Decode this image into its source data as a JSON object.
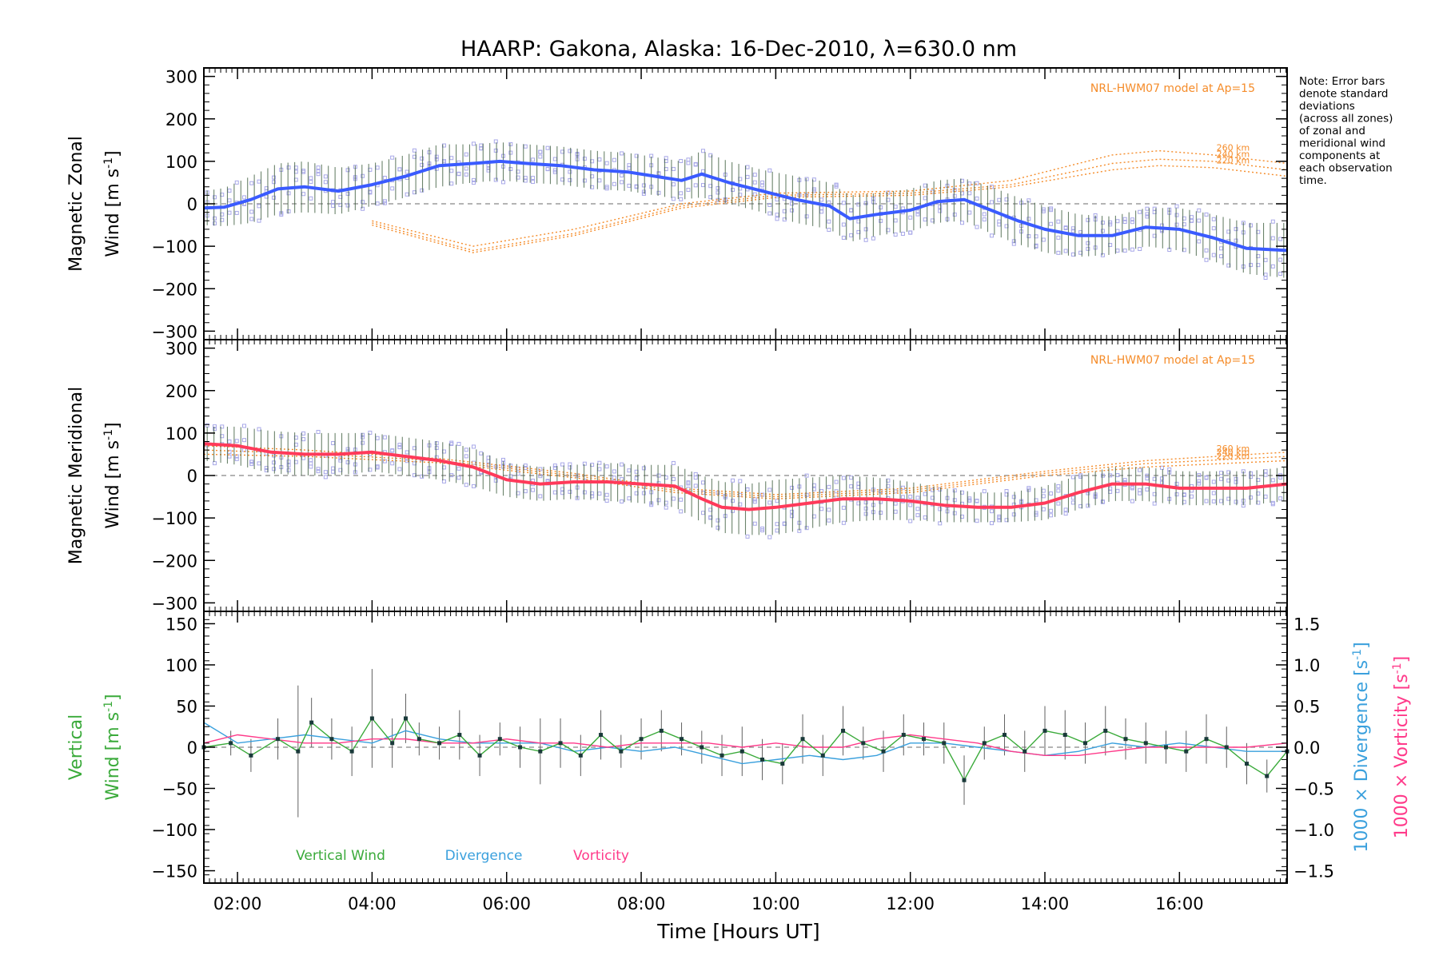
{
  "chart_data": {
    "title": "HAARP: Gakona,  Alaska: 16-Dec-2010, λ=630.0 nm",
    "xlabel": "Time [Hours UT]",
    "x_ticks": [
      "02:00",
      "04:00",
      "06:00",
      "08:00",
      "10:00",
      "12:00",
      "14:00",
      "16:00"
    ],
    "x_tick_hours": [
      2,
      4,
      6,
      8,
      10,
      12,
      14,
      16
    ],
    "xlim_hours": [
      1.5,
      17.6
    ],
    "note": [
      "Note: Error bars",
      "denote standard",
      "deviations",
      "(across all zones)",
      "of zonal and",
      "meridional wind",
      "components at",
      "each observation",
      "time."
    ],
    "colors": {
      "zonal_mean": "#3a5bff",
      "meridional_mean": "#ff3a5a",
      "model": "#f58c2a",
      "scatter": "#a8a8e8",
      "vertical": "#3aaa3a",
      "divergence": "#3aa0dd",
      "vorticity": "#ff3a8a",
      "errorbar": "#606060"
    },
    "panels": [
      {
        "id": "zonal",
        "type": "line",
        "ylabel_line1": "Magnetic Zonal",
        "ylabel_line2a": "Wind [m s",
        "ylabel_sup": "-1",
        "ylabel_line2b": "]",
        "ylim": [
          -320,
          320
        ],
        "yticks": [
          "300",
          "200",
          "100",
          "0",
          "−100",
          "−200",
          "−300"
        ],
        "ytick_values": [
          300,
          200,
          100,
          0,
          -100,
          -200,
          -300
        ],
        "model_label": "NRL-HWM07 model at Ap=15",
        "model_series": [
          {
            "name": "260 km",
            "x": [
              4.0,
              5.5,
              7.0,
              8.6,
              10,
              12,
              13.5,
              15,
              15.7,
              16.5,
              17.6
            ],
            "y": [
              -40,
              -100,
              -60,
              0,
              25,
              30,
              55,
              115,
              125,
              115,
              95
            ]
          },
          {
            "name": "240 km",
            "x": [
              4.0,
              5.5,
              7.0,
              8.6,
              10,
              12,
              13.5,
              15,
              15.7,
              16.5,
              17.6
            ],
            "y": [
              -45,
              -110,
              -70,
              -5,
              20,
              25,
              45,
              95,
              105,
              100,
              80
            ]
          },
          {
            "name": "220 km",
            "x": [
              4.0,
              5.5,
              7.0,
              8.6,
              10,
              12,
              13.5,
              15,
              15.7,
              16.5,
              17.6
            ],
            "y": [
              -50,
              -115,
              -75,
              -10,
              15,
              20,
              40,
              80,
              90,
              85,
              65
            ]
          }
        ],
        "series": [
          {
            "x": [
              1.5,
              1.8,
              2.2,
              2.6,
              3.0,
              3.5,
              4.0,
              4.5,
              5.0,
              5.5,
              5.9,
              6.3,
              6.8,
              7.3,
              7.8,
              8.2,
              8.6,
              8.9,
              9.3,
              9.8,
              10.3,
              10.8,
              11.1,
              11.5,
              12.0,
              12.4,
              12.8,
              13.2,
              13.6,
              14.0,
              14.5,
              15.0,
              15.5,
              16.0,
              16.5,
              17.0,
              17.6
            ],
            "y": [
              -10,
              -8,
              10,
              35,
              40,
              30,
              45,
              65,
              90,
              95,
              100,
              95,
              90,
              80,
              75,
              65,
              55,
              70,
              50,
              30,
              10,
              -5,
              -35,
              -25,
              -15,
              5,
              10,
              -15,
              -40,
              -60,
              -75,
              -75,
              -55,
              -60,
              -80,
              -105,
              -110
            ],
            "err": [
              40,
              45,
              55,
              60,
              60,
              55,
              50,
              50,
              50,
              45,
              45,
              45,
              45,
              45,
              45,
              45,
              45,
              55,
              50,
              50,
              55,
              55,
              55,
              50,
              50,
              50,
              50,
              55,
              55,
              55,
              50,
              45,
              45,
              50,
              55,
              60,
              65
            ]
          }
        ]
      },
      {
        "id": "meridional",
        "type": "line",
        "ylabel_line1": "Magnetic Meridional",
        "ylabel_line2a": "Wind [m s",
        "ylabel_sup": "-1",
        "ylabel_line2b": "]",
        "ylim": [
          -320,
          320
        ],
        "yticks": [
          "300",
          "200",
          "100",
          "0",
          "−100",
          "−200",
          "−300"
        ],
        "ytick_values": [
          300,
          200,
          100,
          0,
          -100,
          -200,
          -300
        ],
        "model_label": "NRL-HWM07 model at Ap=15",
        "model_series": [
          {
            "name": "260 km",
            "x": [
              1.5,
              3.0,
              5.0,
              7.0,
              8.5,
              10.0,
              12.0,
              14.0,
              15.5,
              17.6
            ],
            "y": [
              70,
              60,
              40,
              5,
              -30,
              -45,
              -30,
              10,
              35,
              55
            ]
          },
          {
            "name": "240 km",
            "x": [
              1.5,
              3.0,
              5.0,
              7.0,
              8.5,
              10.0,
              12.0,
              14.0,
              15.5,
              17.6
            ],
            "y": [
              60,
              52,
              35,
              0,
              -35,
              -50,
              -35,
              5,
              28,
              45
            ]
          },
          {
            "name": "220 km",
            "x": [
              1.5,
              3.0,
              5.0,
              7.0,
              8.5,
              10.0,
              12.0,
              14.0,
              15.5,
              17.6
            ],
            "y": [
              50,
              45,
              30,
              -5,
              -40,
              -55,
              -40,
              0,
              20,
              35
            ]
          }
        ],
        "series": [
          {
            "x": [
              1.5,
              2.0,
              2.5,
              3.0,
              3.5,
              4.0,
              4.5,
              5.0,
              5.5,
              6.0,
              6.5,
              7.0,
              7.5,
              8.0,
              8.5,
              8.9,
              9.2,
              9.6,
              10.0,
              10.5,
              11.0,
              11.5,
              12.0,
              12.5,
              13.0,
              13.5,
              14.0,
              14.5,
              15.0,
              15.5,
              16.0,
              16.5,
              17.0,
              17.6
            ],
            "y": [
              75,
              70,
              55,
              50,
              50,
              55,
              45,
              35,
              20,
              -10,
              -20,
              -15,
              -15,
              -20,
              -25,
              -55,
              -75,
              -80,
              -75,
              -65,
              -55,
              -55,
              -60,
              -70,
              -75,
              -75,
              -65,
              -40,
              -20,
              -20,
              -30,
              -30,
              -30,
              -20
            ],
            "err": [
              40,
              45,
              50,
              50,
              50,
              45,
              45,
              45,
              45,
              40,
              40,
              40,
              45,
              45,
              50,
              55,
              60,
              60,
              65,
              60,
              55,
              50,
              45,
              40,
              35,
              35,
              40,
              40,
              40,
              40,
              40,
              40,
              40,
              40
            ]
          }
        ]
      },
      {
        "id": "vertical",
        "type": "line",
        "ylabel_line1": "Vertical",
        "ylabel_line2a": "Wind [m s",
        "ylabel_sup": "-1",
        "ylabel_line2b": "]",
        "ylim": [
          -165,
          165
        ],
        "yticks": [
          "150",
          "100",
          "50",
          "0",
          "−50",
          "−100",
          "−150"
        ],
        "ytick_values": [
          150,
          100,
          50,
          0,
          -50,
          -100,
          -150
        ],
        "right_axis_ticks": [
          "1.5",
          "1.0",
          "0.5",
          "0.0",
          "−0.5",
          "−1.0",
          "−1.5"
        ],
        "right_axis_values": [
          1.5,
          1.0,
          0.5,
          0.0,
          -0.5,
          -1.0,
          -1.5
        ],
        "right_axis_range": [
          -1.65,
          1.65
        ],
        "right_label_div_a": "1000 × Divergence [s",
        "right_label_vor_a": "1000 × Vorticity [s",
        "right_label_sup": "-1",
        "right_label_b": "]",
        "legend": [
          "Vertical Wind",
          "Divergence",
          "Vorticity"
        ],
        "series": [
          {
            "name": "Vertical Wind",
            "x": [
              1.5,
              1.9,
              2.2,
              2.6,
              2.9,
              3.1,
              3.4,
              3.7,
              4.0,
              4.3,
              4.5,
              4.7,
              5.0,
              5.3,
              5.6,
              5.9,
              6.2,
              6.5,
              6.8,
              7.1,
              7.4,
              7.7,
              8.0,
              8.3,
              8.6,
              8.9,
              9.2,
              9.5,
              9.8,
              10.1,
              10.4,
              10.7,
              11.0,
              11.3,
              11.6,
              11.9,
              12.2,
              12.5,
              12.8,
              13.1,
              13.4,
              13.7,
              14.0,
              14.3,
              14.6,
              14.9,
              15.2,
              15.5,
              15.8,
              16.1,
              16.4,
              16.7,
              17.0,
              17.3,
              17.6
            ],
            "y": [
              0,
              5,
              -10,
              10,
              -5,
              30,
              10,
              -5,
              35,
              5,
              35,
              10,
              5,
              15,
              -10,
              10,
              0,
              -5,
              5,
              -10,
              15,
              -5,
              10,
              20,
              10,
              0,
              -10,
              -5,
              -15,
              -20,
              10,
              -10,
              20,
              5,
              -5,
              15,
              10,
              5,
              -40,
              5,
              15,
              -5,
              20,
              15,
              5,
              20,
              10,
              5,
              0,
              -5,
              10,
              0,
              -20,
              -35,
              -5
            ],
            "err": [
              10,
              15,
              20,
              25,
              80,
              30,
              25,
              30,
              60,
              30,
              30,
              20,
              20,
              30,
              25,
              20,
              25,
              40,
              30,
              25,
              30,
              20,
              25,
              25,
              20,
              20,
              25,
              30,
              25,
              25,
              30,
              25,
              30,
              20,
              25,
              25,
              20,
              25,
              30,
              20,
              25,
              25,
              30,
              30,
              25,
              30,
              25,
              25,
              20,
              25,
              30,
              25,
              25,
              20,
              15
            ]
          },
          {
            "name": "Divergence",
            "x": [
              1.5,
              2.0,
              2.5,
              3.0,
              3.5,
              4.0,
              4.5,
              5.0,
              5.5,
              6.0,
              6.5,
              7.0,
              7.5,
              8.0,
              8.5,
              9.0,
              9.5,
              10.0,
              10.5,
              11.0,
              11.5,
              12.0,
              12.5,
              13.0,
              13.5,
              14.0,
              14.5,
              15.0,
              15.5,
              16.0,
              16.5,
              17.0,
              17.6
            ],
            "y": [
              0.3,
              0.05,
              0.1,
              0.15,
              0.1,
              0.05,
              0.2,
              0.1,
              0.05,
              0.05,
              0.05,
              -0.05,
              0.0,
              -0.05,
              0.0,
              -0.1,
              -0.2,
              -0.15,
              -0.1,
              -0.15,
              -0.1,
              0.05,
              0.05,
              0.0,
              -0.05,
              -0.1,
              -0.05,
              0.05,
              0.0,
              0.05,
              0.0,
              -0.05,
              -0.05
            ]
          },
          {
            "name": "Vorticity",
            "x": [
              1.5,
              2.0,
              2.5,
              3.0,
              3.5,
              4.0,
              4.5,
              5.0,
              5.5,
              6.0,
              6.5,
              7.0,
              7.5,
              8.0,
              8.5,
              9.0,
              9.5,
              10.0,
              10.5,
              11.0,
              11.5,
              12.0,
              12.5,
              13.0,
              13.5,
              14.0,
              14.5,
              15.0,
              15.5,
              16.0,
              16.5,
              17.0,
              17.6
            ],
            "y": [
              0.05,
              0.15,
              0.1,
              0.05,
              0.05,
              0.1,
              0.1,
              0.05,
              0.05,
              0.1,
              0.05,
              0.05,
              0.0,
              0.05,
              0.05,
              0.05,
              0.0,
              0.05,
              0.0,
              0.0,
              0.1,
              0.15,
              0.1,
              0.05,
              -0.05,
              -0.1,
              -0.1,
              -0.05,
              0.0,
              0.0,
              0.0,
              0.0,
              0.05
            ]
          }
        ]
      }
    ]
  }
}
